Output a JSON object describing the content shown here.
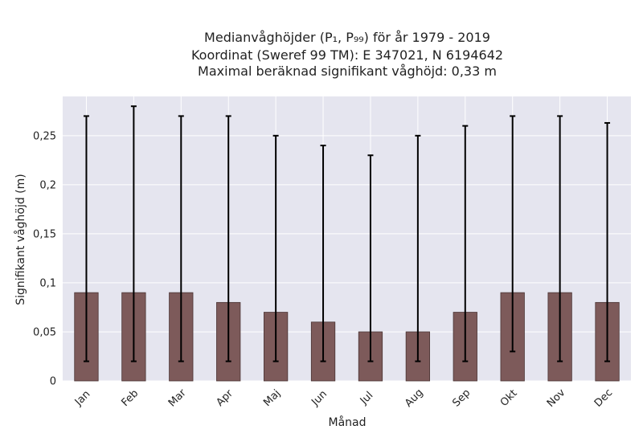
{
  "chart_data": {
    "type": "bar",
    "title": "Medianvåghöjder (P₁, P₉₉) för år 1979 - 2019",
    "subtitle_lines": [
      "Koordinat (Sweref 99 TM): E 347021, N 6194642",
      "Maximal beräknad signifikant våghöjd: 0,33 m"
    ],
    "xlabel": "Månad",
    "ylabel": "Signifikant våghöjd (m)",
    "categories": [
      "Jan",
      "Feb",
      "Mar",
      "Apr",
      "Maj",
      "Jun",
      "Jul",
      "Aug",
      "Sep",
      "Okt",
      "Nov",
      "Dec"
    ],
    "values": [
      0.09,
      0.09,
      0.09,
      0.08,
      0.07,
      0.06,
      0.05,
      0.05,
      0.07,
      0.09,
      0.09,
      0.08
    ],
    "p1": [
      0.02,
      0.02,
      0.02,
      0.02,
      0.02,
      0.02,
      0.02,
      0.02,
      0.02,
      0.03,
      0.02,
      0.02
    ],
    "p99": [
      0.27,
      0.28,
      0.27,
      0.27,
      0.25,
      0.24,
      0.23,
      0.25,
      0.26,
      0.27,
      0.27,
      0.263
    ],
    "ylim": [
      0,
      0.29
    ],
    "yticks": [
      0,
      0.05,
      0.1,
      0.15,
      0.2,
      0.25
    ],
    "ytick_labels": [
      "0",
      "0,05",
      "0,1",
      "0,15",
      "0,2",
      "0,25"
    ],
    "grid": true,
    "colors": {
      "bar": "#7d5a5a",
      "bar_edge": "#4a3434",
      "error": "#000000",
      "plot_bg": "#e5e5ef",
      "grid": "#ffffff"
    }
  }
}
